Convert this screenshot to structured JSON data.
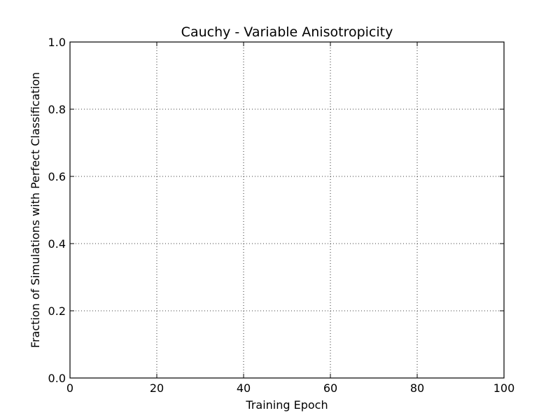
{
  "chart_data": {
    "type": "line",
    "title": "Cauchy - Variable Anisotropicity",
    "xlabel": "Training Epoch",
    "ylabel": "Fraction of Simulations with Perfect Classification",
    "xlim": [
      0,
      100
    ],
    "ylim": [
      0.0,
      1.0
    ],
    "xticks": [
      0,
      20,
      40,
      60,
      80,
      100
    ],
    "yticks": [
      0.0,
      0.2,
      0.4,
      0.6,
      0.8,
      1.0
    ],
    "xtick_labels": [
      "0",
      "20",
      "40",
      "60",
      "80",
      "100"
    ],
    "ytick_labels": [
      "0.0",
      "0.2",
      "0.4",
      "0.6",
      "0.8",
      "1.0"
    ],
    "grid": true,
    "grid_style": "dotted",
    "series": []
  }
}
